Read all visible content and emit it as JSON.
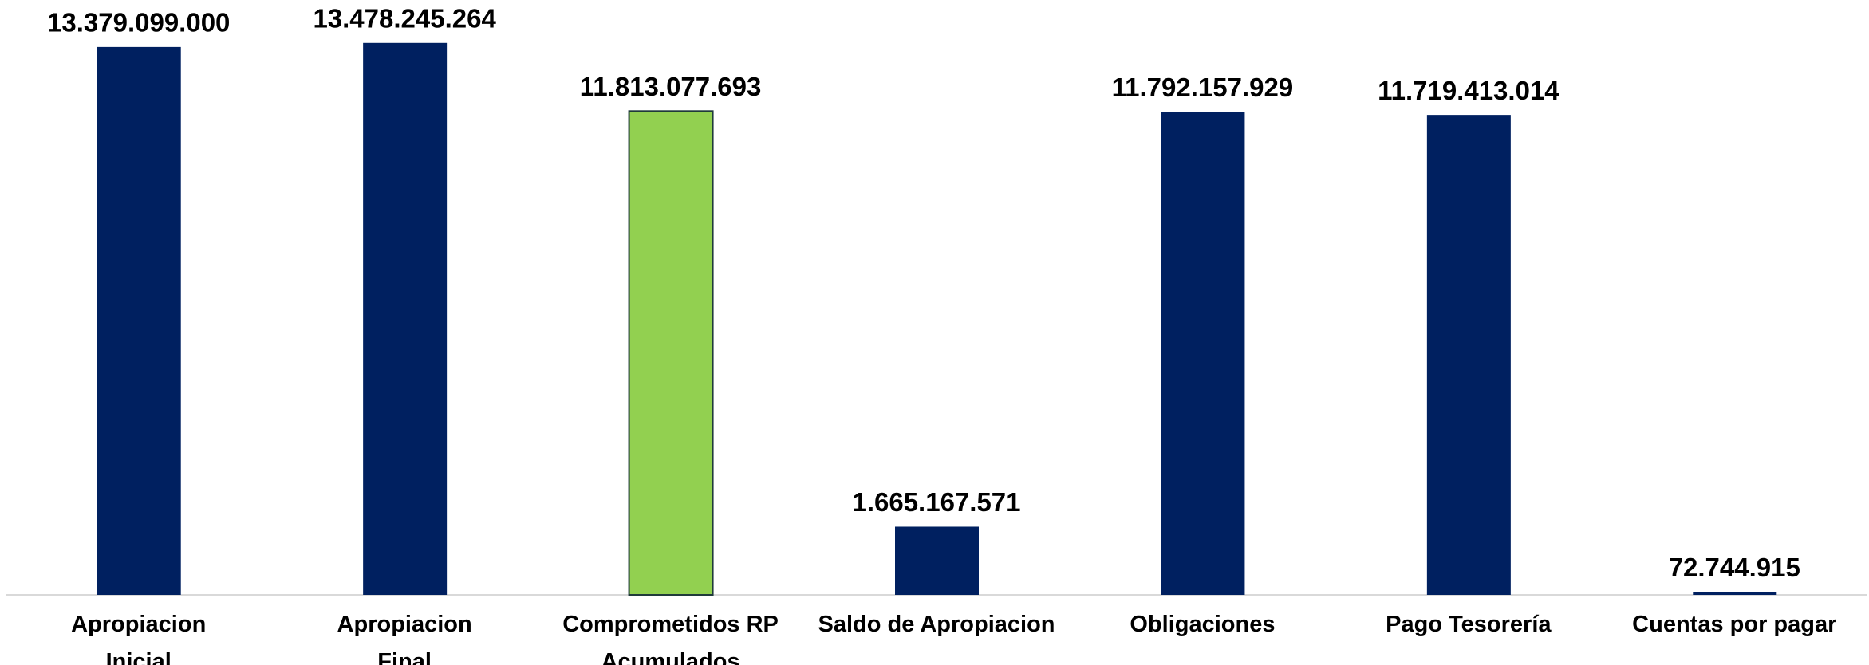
{
  "chart_data": {
    "type": "bar",
    "categories": [
      "Apropiacion\nInicial",
      "Apropiacion\nFinal",
      "Comprometidos RP\nAcumulados",
      "Saldo de Apropiacion",
      "Obligaciones",
      "Pago Tesorería",
      "Cuentas por pagar"
    ],
    "values": [
      13379099000,
      13478245264,
      11813077693,
      1665167571,
      11792157929,
      11719413014,
      72744915
    ],
    "value_labels": [
      "13.379.099.000",
      "13.478.245.264",
      "11.813.077.693",
      "1.665.167.571",
      "11.792.157.929",
      "11.719.413.014",
      "72.744.915"
    ],
    "colors": [
      "#002060",
      "#002060",
      "#92d050",
      "#002060",
      "#002060",
      "#002060",
      "#002060"
    ],
    "ylim": [
      0,
      14000000000
    ]
  }
}
